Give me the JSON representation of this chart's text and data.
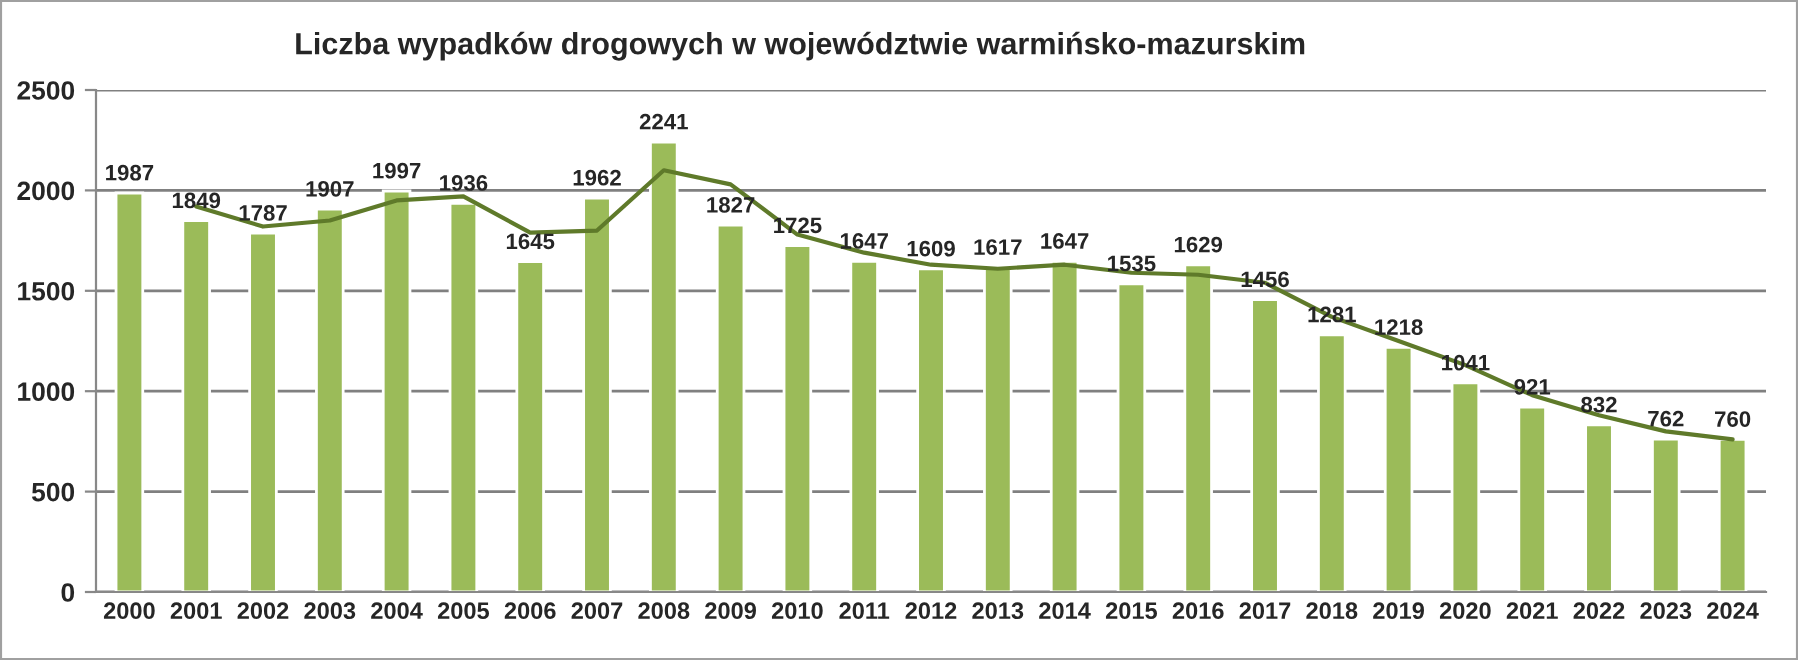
{
  "chart_data": {
    "type": "bar",
    "title": "Liczba wypadków drogowych w województwie warmińsko-mazurskim",
    "categories": [
      "2000",
      "2001",
      "2002",
      "2003",
      "2004",
      "2005",
      "2006",
      "2007",
      "2008",
      "2009",
      "2010",
      "2011",
      "2012",
      "2013",
      "2014",
      "2015",
      "2016",
      "2017",
      "2018",
      "2019",
      "2020",
      "2021",
      "2022",
      "2023",
      "2024"
    ],
    "series": [
      {
        "color": "#9bbb59",
        "values": [
          1987,
          1849,
          1787,
          1907,
          1997,
          1936,
          1645,
          1962,
          2241,
          1827,
          1725,
          1647,
          1609,
          1617,
          1647,
          1535,
          1629,
          1456,
          1281,
          1218,
          1041,
          921,
          832,
          762,
          760
        ],
        "value_labels": [
          "1987",
          "1849",
          "1787",
          "1907",
          "1997",
          "1936",
          "1645",
          "1962",
          "2241",
          "1827",
          "1725",
          "1647",
          "1609",
          "1617",
          "1647",
          "1535",
          "1629",
          "1456",
          "1281",
          "1218",
          "1041",
          "921",
          "832",
          "762",
          "760"
        ]
      },
      {
        "type": "line",
        "color": "#5f7a2a",
        "values": [
          null,
          1920,
          1820,
          1850,
          1950,
          1970,
          1790,
          1800,
          2100,
          2030,
          1780,
          1690,
          1630,
          1610,
          1630,
          1590,
          1580,
          1540,
          1370,
          1250,
          1130,
          980,
          880,
          800,
          760
        ]
      }
    ],
    "ylim": [
      0,
      2500
    ],
    "yticks": [
      0,
      500,
      1000,
      1500,
      2000,
      2500
    ],
    "grid": "y",
    "legend": false,
    "marker": "none",
    "line_style": "solid"
  }
}
